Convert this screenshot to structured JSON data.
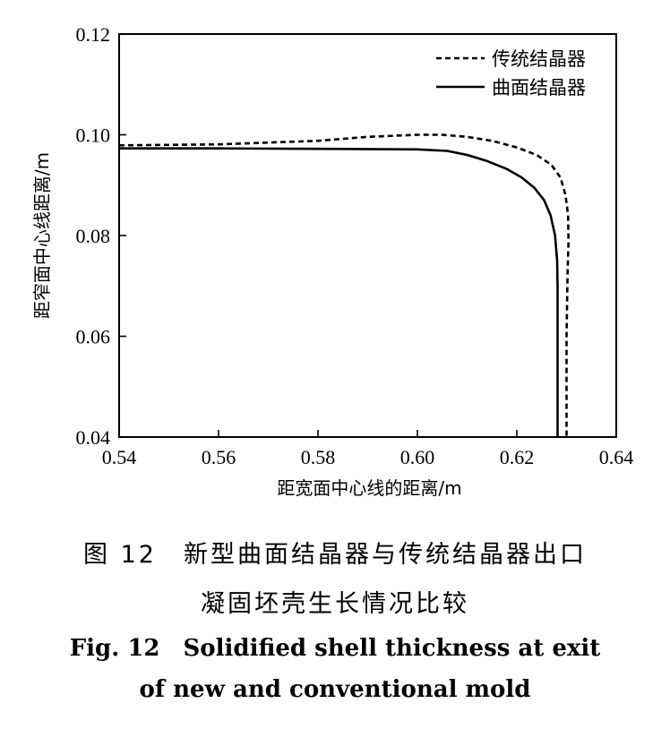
{
  "chart_data": {
    "type": "line",
    "title": "",
    "xlabel": "距宽面中心线的距离/m",
    "ylabel": "距窄面中心线距离/m",
    "xlim": [
      0.54,
      0.64
    ],
    "ylim": [
      0.04,
      0.12
    ],
    "x_ticks": [
      0.54,
      0.56,
      0.58,
      0.6,
      0.62,
      0.64
    ],
    "y_ticks": [
      0.04,
      0.06,
      0.08,
      0.1,
      0.12
    ],
    "x_tick_labels": [
      "0.54",
      "0.56",
      "0.58",
      "0.60",
      "0.62",
      "0.64"
    ],
    "y_tick_labels": [
      "0.04",
      "0.06",
      "0.08",
      "0.10",
      "0.12"
    ],
    "grid": false,
    "legend_position": "top-right",
    "series": [
      {
        "name": "传统结晶器",
        "style": "dashed",
        "color": "#000000",
        "points": [
          [
            0.54,
            0.0979
          ],
          [
            0.56,
            0.0981
          ],
          [
            0.58,
            0.0988
          ],
          [
            0.59,
            0.0996
          ],
          [
            0.6,
            0.1
          ],
          [
            0.605,
            0.1
          ],
          [
            0.61,
            0.0996
          ],
          [
            0.615,
            0.0988
          ],
          [
            0.62,
            0.0975
          ],
          [
            0.624,
            0.096
          ],
          [
            0.627,
            0.094
          ],
          [
            0.6288,
            0.0915
          ],
          [
            0.6298,
            0.088
          ],
          [
            0.6303,
            0.084
          ],
          [
            0.6304,
            0.079
          ],
          [
            0.6302,
            0.072
          ],
          [
            0.63,
            0.06
          ],
          [
            0.63,
            0.04
          ]
        ]
      },
      {
        "name": "曲面结晶器",
        "style": "solid",
        "color": "#000000",
        "points": [
          [
            0.54,
            0.0973
          ],
          [
            0.56,
            0.0973
          ],
          [
            0.58,
            0.0972
          ],
          [
            0.6,
            0.0971
          ],
          [
            0.606,
            0.0968
          ],
          [
            0.61,
            0.096
          ],
          [
            0.614,
            0.0948
          ],
          [
            0.618,
            0.0932
          ],
          [
            0.621,
            0.0915
          ],
          [
            0.6235,
            0.0895
          ],
          [
            0.6255,
            0.087
          ],
          [
            0.6268,
            0.084
          ],
          [
            0.6277,
            0.08
          ],
          [
            0.6281,
            0.075
          ],
          [
            0.6282,
            0.07
          ],
          [
            0.6282,
            0.06
          ],
          [
            0.6282,
            0.04
          ]
        ]
      }
    ]
  },
  "caption": {
    "zh_line1": "图 12　新型曲面结晶器与传统结晶器出口",
    "zh_line2": "凝固坯壳生长情况比较",
    "en_line1": "Fig. 12　Solidified shell thickness at exit",
    "en_line2": "of new and conventional mold"
  }
}
